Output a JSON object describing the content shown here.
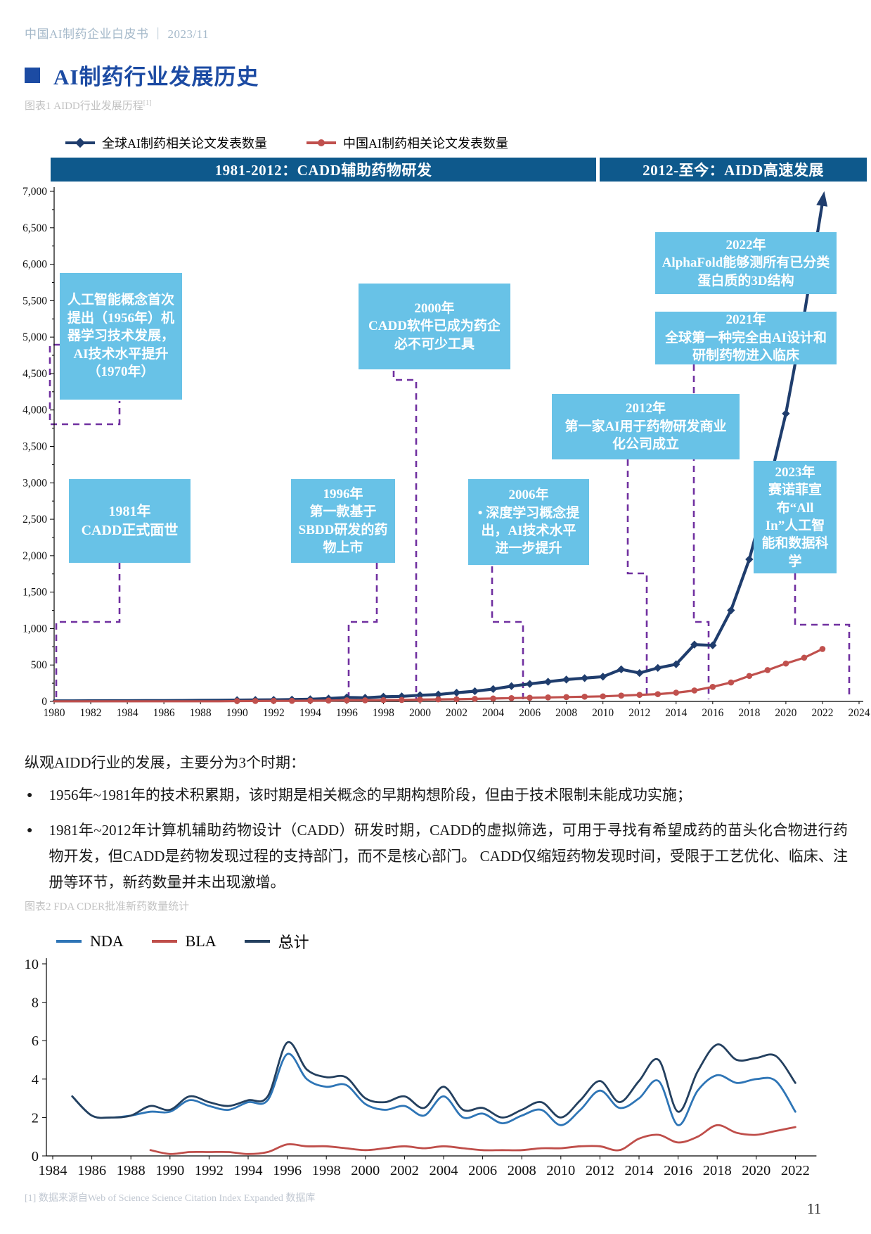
{
  "page": {
    "header": "中国AI制药企业白皮书 ｜ 2023/11",
    "footnote": "[1] 数据来源自Web of Science Science Citation Index Expanded 数据库",
    "page_number": "11"
  },
  "section": {
    "title": "AI制药行业发展历史"
  },
  "figures": {
    "fig1_caption": "图表1 AIDD行业发展历程",
    "fig1_caption_sup": "[1]",
    "fig2_caption": "图表2 FDA CDER批准新药数量统计"
  },
  "paragraph": {
    "lead": "纵观AIDD行业的发展，主要分为3个时期：",
    "bullets": [
      "1956年~1981年的技术积累期，该时期是相关概念的早期构想阶段，但由于技术限制未能成功实施；",
      "1981年~2012年计算机辅助药物设计（CADD）研发时期，CADD的虚拟筛选，可用于寻找有希望成药的苗头化合物进行药物开发，但CADD是药物发现过程的支持部门，而不是核心部门。 CADD仅缩短药物发现时间，受限于工艺优化、临床、注册等环节，新药数量并未出现激增。"
    ]
  },
  "colors": {
    "accent_blue": "#1c4ba3",
    "banner_blue": "#0e598c",
    "milestone_box_blue": "#68c2e7",
    "connector_purple": "#7030a0",
    "global_navy": "#1f3d6d",
    "china_red": "#c0504d",
    "nda_blue": "#2e75b6",
    "bla_red": "#bf4e4a",
    "total_navy": "#24405f"
  },
  "chart_data": [
    {
      "type": "line",
      "title": "AIDD行业发展历程",
      "era_banners": [
        "1981-2012：CADD辅助药物研发",
        "2012-至今：AIDD高速发展"
      ],
      "x_start": 1980,
      "x_end": 2024,
      "x_tick_step": 2,
      "ylim": [
        0,
        7000
      ],
      "y_tick_step": 500,
      "grid": false,
      "legend_position": "top",
      "series": [
        {
          "name": "全球AI制药相关论文发表数量",
          "color": "#1f3d6d",
          "marker": "diamond",
          "width": 4.2,
          "arrow": true,
          "start_year": 1980,
          "values": [
            8,
            8,
            9,
            10,
            10,
            11,
            12,
            13,
            14,
            15,
            18,
            20,
            22,
            25,
            30,
            40,
            55,
            50,
            65,
            70,
            85,
            95,
            120,
            140,
            170,
            210,
            240,
            270,
            300,
            320,
            340,
            440,
            390,
            460,
            510,
            780,
            770,
            1250,
            1950,
            2900,
            3950,
            5300,
            6850
          ]
        },
        {
          "name": "中国AI制药相关论文发表数量",
          "color": "#c0504d",
          "marker": "circle",
          "width": 3.2,
          "arrow": false,
          "start_year": 1980,
          "values": [
            2,
            2,
            2,
            2,
            2,
            2,
            2,
            2,
            2,
            2,
            5,
            6,
            8,
            8,
            10,
            12,
            15,
            15,
            18,
            20,
            25,
            28,
            30,
            35,
            40,
            45,
            50,
            55,
            60,
            65,
            70,
            80,
            90,
            100,
            120,
            150,
            200,
            260,
            350,
            430,
            520,
            600,
            720
          ]
        }
      ],
      "annotations": [
        {
          "title": "",
          "body": "人工智能概念首次提出（1956年）机器学习技术发展，AI技术水平提升（1970年）"
        },
        {
          "title": "1981年",
          "body": "CADD正式面世"
        },
        {
          "title": "1996年",
          "body": "第一款基于SBDD研发的药物上市"
        },
        {
          "title": "2000年",
          "body": "CADD软件已成为药企必不可少工具"
        },
        {
          "title": "2006年",
          "body": "•  深度学习概念提出，AI技术水平进一步提升"
        },
        {
          "title": "2012年",
          "body": "第一家AI用于药物研发商业化公司成立"
        },
        {
          "title": "2022年",
          "body": "AlphaFold能够测所有已分类蛋白质的3D结构"
        },
        {
          "title": "2021年",
          "body": "全球第一种完全由AI设计和研制药物进入临床"
        },
        {
          "title": "2023年",
          "body": "赛诺菲宣布“All In”人工智能和数据科学"
        }
      ]
    },
    {
      "type": "line",
      "title": "FDA CDER批准新药数量统计",
      "x_start": 1984,
      "x_end": 2022,
      "x_tick_step": 2,
      "ylim": [
        0,
        10
      ],
      "y_tick_step": 2,
      "grid": false,
      "legend_position": "top-left",
      "smooth": true,
      "series": [
        {
          "name": "NDA",
          "color": "#2e75b6",
          "width": 2.8,
          "start_year": 1985,
          "values": [
            3.1,
            2.1,
            2.0,
            2.1,
            2.3,
            2.3,
            2.9,
            2.6,
            2.4,
            2.8,
            2.9,
            5.3,
            4.0,
            3.6,
            3.7,
            2.7,
            2.4,
            2.6,
            2.1,
            3.1,
            2.0,
            2.2,
            1.7,
            2.1,
            2.4,
            1.6,
            2.4,
            3.4,
            2.5,
            3.0,
            3.9,
            1.6,
            3.4,
            4.2,
            3.8,
            4.0,
            3.9,
            2.3
          ]
        },
        {
          "name": "BLA",
          "color": "#bf4e4a",
          "width": 2.8,
          "start_year": 1989,
          "values": [
            0.3,
            0.1,
            0.2,
            0.2,
            0.2,
            0.1,
            0.2,
            0.6,
            0.5,
            0.5,
            0.4,
            0.3,
            0.4,
            0.5,
            0.4,
            0.5,
            0.4,
            0.3,
            0.3,
            0.3,
            0.4,
            0.4,
            0.5,
            0.5,
            0.3,
            0.9,
            1.1,
            0.7,
            1.0,
            1.6,
            1.2,
            1.1,
            1.3,
            1.5
          ]
        },
        {
          "name": "总计",
          "color": "#24405f",
          "width": 2.8,
          "start_year": 1985,
          "values": [
            3.1,
            2.1,
            2.0,
            2.1,
            2.6,
            2.4,
            3.1,
            2.8,
            2.6,
            2.9,
            3.1,
            5.9,
            4.5,
            4.1,
            4.1,
            3.0,
            2.8,
            3.1,
            2.5,
            3.6,
            2.4,
            2.5,
            2.0,
            2.4,
            2.8,
            2.0,
            2.9,
            3.9,
            2.8,
            3.9,
            5.0,
            2.3,
            4.4,
            5.8,
            5.0,
            5.1,
            5.2,
            3.8
          ]
        }
      ]
    }
  ]
}
